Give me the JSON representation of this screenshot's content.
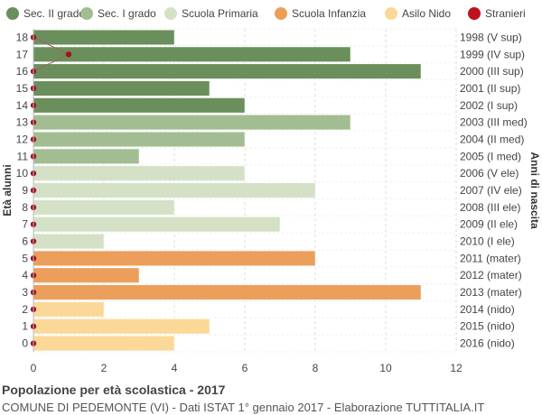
{
  "chart_data": {
    "type": "bar",
    "orientation": "horizontal",
    "title": "Popolazione per età scolastica - 2017",
    "subtitle": "COMUNE DI PEDEMONTE (VI) - Dati ISTAT 1° gennaio 2017 - Elaborazione TUTTITALIA.IT",
    "ylabel_left": "Età alunni",
    "ylabel_right": "Anni di nascita",
    "xlim": [
      0,
      12
    ],
    "xticks": [
      "0",
      "2",
      "4",
      "6",
      "8",
      "10",
      "12"
    ],
    "grid": true,
    "legend_position": "top",
    "legend": [
      {
        "name": "Sec. II grado",
        "color": "#6b8f5c"
      },
      {
        "name": "Sec. I grado",
        "color": "#a3bd92"
      },
      {
        "name": "Scuola Primaria",
        "color": "#d4e1c6"
      },
      {
        "name": "Scuola Infanzia",
        "color": "#eb9f5a"
      },
      {
        "name": "Asilo Nido",
        "color": "#fcd898"
      },
      {
        "name": "Stranieri",
        "color": "#c0121e"
      }
    ],
    "rows": [
      {
        "age": "18",
        "birth": "1998 (V sup)",
        "value": 4,
        "stranieri": 0,
        "group": 0
      },
      {
        "age": "17",
        "birth": "1999 (IV sup)",
        "value": 9,
        "stranieri": 1,
        "group": 0
      },
      {
        "age": "16",
        "birth": "2000 (III sup)",
        "value": 11,
        "stranieri": 0,
        "group": 0
      },
      {
        "age": "15",
        "birth": "2001 (II sup)",
        "value": 5,
        "stranieri": 0,
        "group": 0
      },
      {
        "age": "14",
        "birth": "2002 (I sup)",
        "value": 6,
        "stranieri": 0,
        "group": 0
      },
      {
        "age": "13",
        "birth": "2003 (III med)",
        "value": 9,
        "stranieri": 0,
        "group": 1
      },
      {
        "age": "12",
        "birth": "2004 (II med)",
        "value": 6,
        "stranieri": 0,
        "group": 1
      },
      {
        "age": "11",
        "birth": "2005 (I med)",
        "value": 3,
        "stranieri": 0,
        "group": 1
      },
      {
        "age": "10",
        "birth": "2006 (V ele)",
        "value": 6,
        "stranieri": 0,
        "group": 2
      },
      {
        "age": "9",
        "birth": "2007 (IV ele)",
        "value": 8,
        "stranieri": 0,
        "group": 2
      },
      {
        "age": "8",
        "birth": "2008 (III ele)",
        "value": 4,
        "stranieri": 0,
        "group": 2
      },
      {
        "age": "7",
        "birth": "2009 (II ele)",
        "value": 7,
        "stranieri": 0,
        "group": 2
      },
      {
        "age": "6",
        "birth": "2010 (I ele)",
        "value": 2,
        "stranieri": 0,
        "group": 2
      },
      {
        "age": "5",
        "birth": "2011 (mater)",
        "value": 8,
        "stranieri": 0,
        "group": 3
      },
      {
        "age": "4",
        "birth": "2012 (mater)",
        "value": 3,
        "stranieri": 0,
        "group": 3
      },
      {
        "age": "3",
        "birth": "2013 (mater)",
        "value": 11,
        "stranieri": 0,
        "group": 3
      },
      {
        "age": "2",
        "birth": "2014 (nido)",
        "value": 2,
        "stranieri": 0,
        "group": 4
      },
      {
        "age": "1",
        "birth": "2015 (nido)",
        "value": 5,
        "stranieri": 0,
        "group": 4
      },
      {
        "age": "0",
        "birth": "2016 (nido)",
        "value": 4,
        "stranieri": 0,
        "group": 4
      }
    ]
  }
}
